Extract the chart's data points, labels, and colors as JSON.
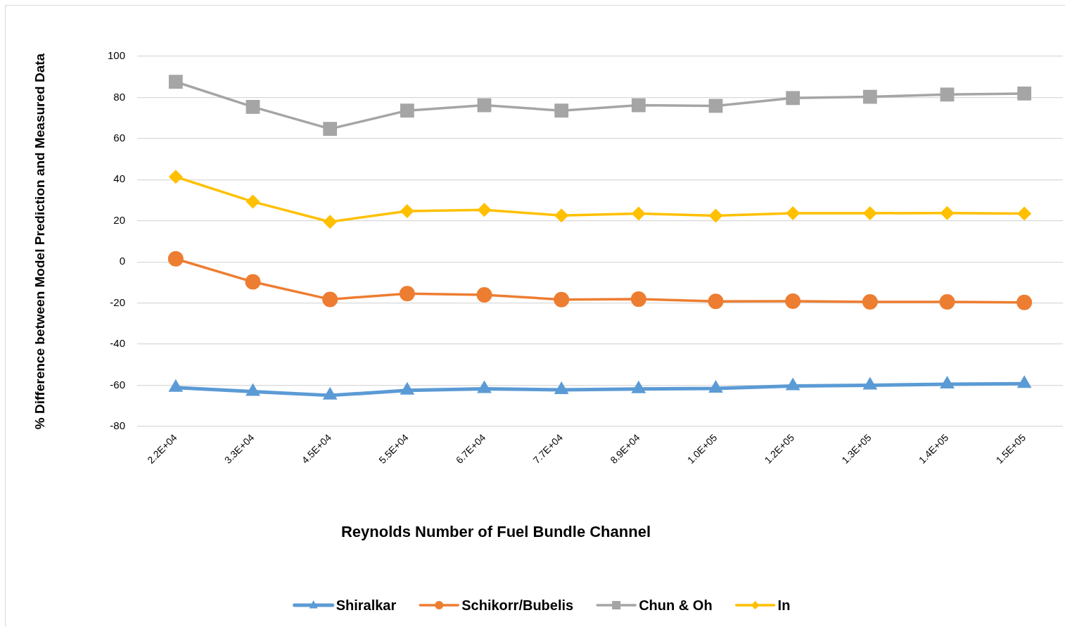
{
  "chart_data": {
    "type": "line",
    "xlabel": "Reynolds Number of Fuel Bundle Channel",
    "ylabel": "% Difference between Model Prediction and Measured Data",
    "categories": [
      "2.2E+04",
      "3.3E+04",
      "4.5E+04",
      "5.5E+04",
      "6.7E+04",
      "7.7E+04",
      "8.9E+04",
      "1.0E+05",
      "1.2E+05",
      "1.3E+05",
      "1.4E+05",
      "1.5E+05"
    ],
    "ylim": [
      -80,
      100
    ],
    "yticks": [
      -80,
      -60,
      -40,
      -20,
      0,
      20,
      40,
      60,
      80,
      100
    ],
    "grid": "y",
    "legend": "bottom",
    "line_style": "solid",
    "series": [
      {
        "name": "Shiralkar",
        "color": "#5b9bd5",
        "marker": "triangle",
        "values": [
          -61.1,
          -63.1,
          -64.9,
          -62.5,
          -61.7,
          -62.2,
          -61.8,
          -61.5,
          -60.3,
          -60.0,
          -59.5,
          -59.2
        ]
      },
      {
        "name": "Schikorr/Bubelis",
        "color": "#ed7d31",
        "marker": "circle",
        "values": [
          1.5,
          -9.7,
          -18.2,
          -15.4,
          -16.0,
          -18.3,
          -18.1,
          -19.2,
          -19.1,
          -19.4,
          -19.4,
          -19.7
        ]
      },
      {
        "name": "Chun & Oh",
        "color": "#a5a5a5",
        "marker": "square",
        "values": [
          87.6,
          75.4,
          64.7,
          73.6,
          76.2,
          73.6,
          76.2,
          75.9,
          79.7,
          80.3,
          81.4,
          81.9
        ]
      },
      {
        "name": "In",
        "color": "#ffc000",
        "marker": "diamond",
        "values": [
          41.4,
          29.3,
          19.5,
          24.7,
          25.3,
          22.6,
          23.5,
          22.5,
          23.7,
          23.7,
          23.8,
          23.5
        ]
      }
    ]
  }
}
